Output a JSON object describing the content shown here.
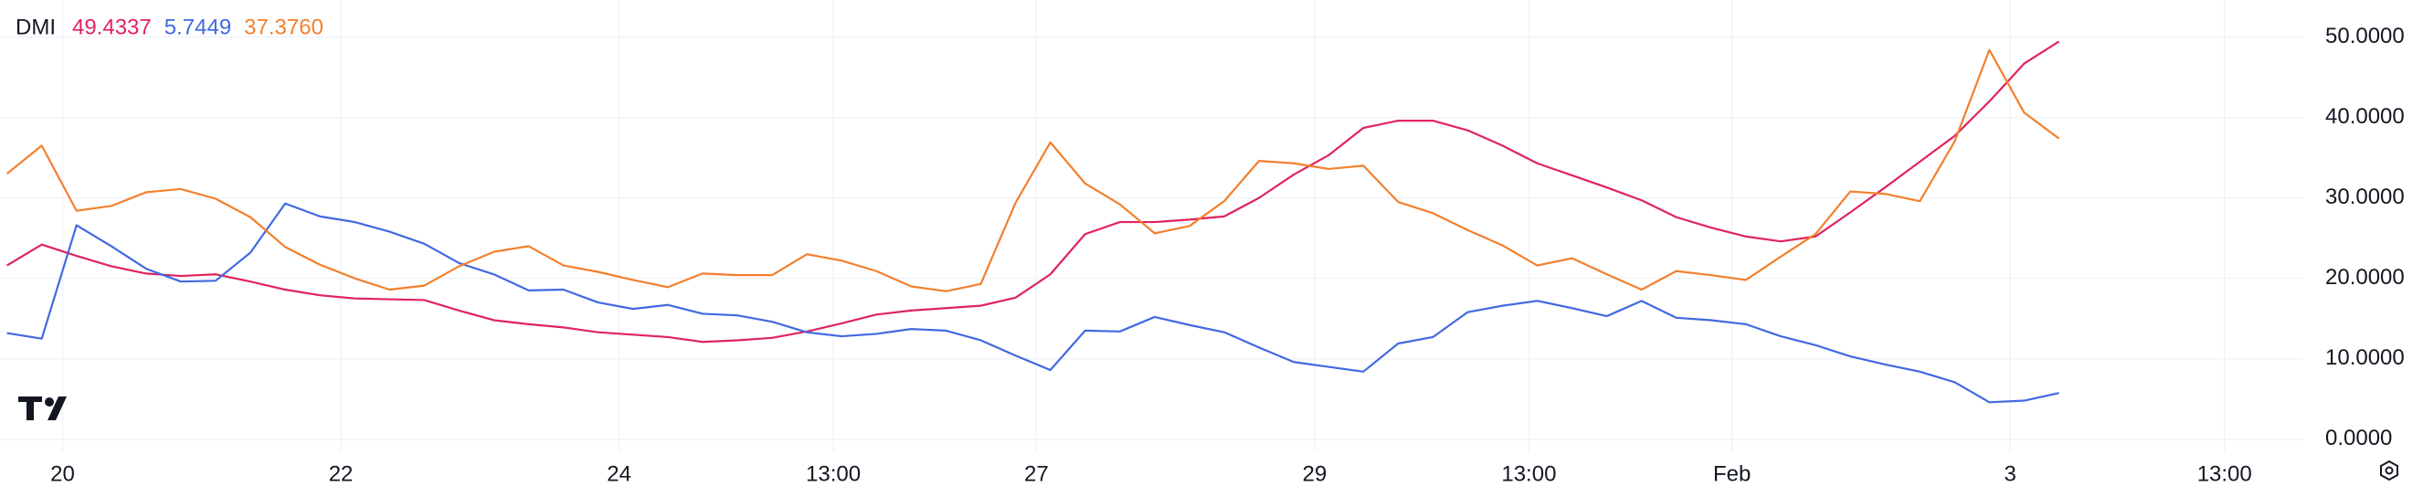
{
  "chart_data": {
    "type": "line",
    "title": "DMI",
    "x": [
      19.6,
      19.85,
      20.1,
      20.35,
      20.6,
      20.85,
      21.1,
      21.35,
      21.6,
      21.85,
      22.1,
      22.35,
      22.6,
      22.85,
      23.1,
      23.35,
      23.6,
      23.85,
      24.1,
      24.35,
      24.6,
      24.85,
      25.1,
      25.35,
      25.6,
      25.85,
      26.1,
      26.35,
      26.6,
      26.85,
      27.1,
      27.35,
      27.6,
      27.85,
      28.1,
      28.35,
      28.6,
      28.85,
      29.1,
      29.35,
      29.6,
      29.85,
      30.1,
      30.35,
      30.6,
      30.85,
      31.1,
      31.35,
      31.6,
      31.85,
      32.1,
      32.35,
      32.6,
      32.85,
      33.1,
      33.35,
      33.6,
      33.85,
      34.1,
      34.35
    ],
    "series": [
      {
        "color": "#e0245e",
        "last_label": "49.4337",
        "values": [
          21.6,
          24.2,
          22.8,
          21.5,
          20.6,
          20.3,
          20.5,
          19.6,
          18.6,
          17.9,
          17.5,
          17.4,
          17.3,
          16.0,
          14.8,
          14.3,
          13.9,
          13.3,
          13.0,
          12.7,
          12.1,
          12.3,
          12.6,
          13.4,
          14.4,
          15.5,
          16.0,
          16.3,
          16.6,
          17.6,
          20.5,
          25.5,
          27.0,
          27.0,
          27.3,
          27.7,
          30.0,
          32.9,
          35.3,
          38.7,
          39.6,
          39.6,
          38.4,
          36.5,
          34.3,
          32.8,
          31.3,
          29.7,
          27.6,
          26.3,
          25.2,
          24.6,
          25.2,
          28.2,
          31.3,
          34.5,
          37.7,
          42.0,
          46.7,
          49.4337
        ]
      },
      {
        "color": "#4169e1",
        "last_label": "5.7449",
        "values": [
          13.2,
          12.5,
          26.6,
          24.0,
          21.2,
          19.6,
          19.7,
          23.2,
          29.3,
          27.7,
          27.0,
          25.8,
          24.3,
          21.9,
          20.5,
          18.5,
          18.6,
          17.0,
          16.2,
          16.7,
          15.6,
          15.4,
          14.6,
          13.3,
          12.8,
          13.1,
          13.7,
          13.5,
          12.3,
          10.4,
          8.6,
          13.5,
          13.4,
          15.2,
          14.2,
          13.3,
          11.4,
          9.6,
          9.0,
          8.4,
          11.9,
          12.7,
          15.8,
          16.6,
          17.2,
          16.3,
          15.3,
          17.2,
          15.1,
          14.8,
          14.3,
          12.8,
          11.7,
          10.3,
          9.3,
          8.4,
          7.1,
          4.6,
          4.8,
          5.7449
        ]
      },
      {
        "color": "#f2802d",
        "last_label": "37.3760",
        "values": [
          33.0,
          36.5,
          28.4,
          29.0,
          30.7,
          31.1,
          29.9,
          27.6,
          23.9,
          21.7,
          20.0,
          18.6,
          19.1,
          21.5,
          23.3,
          24.0,
          21.6,
          20.8,
          19.8,
          18.9,
          20.6,
          20.4,
          20.4,
          23.0,
          22.2,
          20.9,
          19.0,
          18.4,
          19.3,
          29.4,
          36.9,
          31.8,
          29.2,
          25.6,
          26.5,
          29.6,
          34.6,
          34.3,
          33.6,
          34.0,
          29.5,
          28.1,
          26.0,
          24.1,
          21.6,
          22.5,
          20.5,
          18.6,
          20.9,
          20.4,
          19.8,
          22.7,
          25.5,
          30.8,
          30.5,
          29.6,
          37.0,
          48.4,
          40.6,
          37.376
        ]
      }
    ],
    "xlim": [
      19.55,
      36.1
    ],
    "xticks": [
      20,
      22,
      24,
      {
        "value": 25.54,
        "label": "13:00"
      },
      27,
      29,
      {
        "value": 30.54,
        "label": "13:00"
      },
      {
        "value": 32,
        "label": "Feb"
      },
      {
        "value": 34,
        "label": "3"
      },
      {
        "value": 35.54,
        "label": "13:00"
      }
    ],
    "ylim": [
      -1.5,
      54.6
    ],
    "yticks": [
      {
        "value": 0,
        "label": "0.0000"
      },
      {
        "value": 10,
        "label": "10.0000"
      },
      {
        "value": 20,
        "label": "20.0000"
      },
      {
        "value": 30,
        "label": "30.0000"
      },
      {
        "value": 40,
        "label": "40.0000"
      },
      {
        "value": 50,
        "label": "50.0000"
      }
    ],
    "grid": true
  }
}
